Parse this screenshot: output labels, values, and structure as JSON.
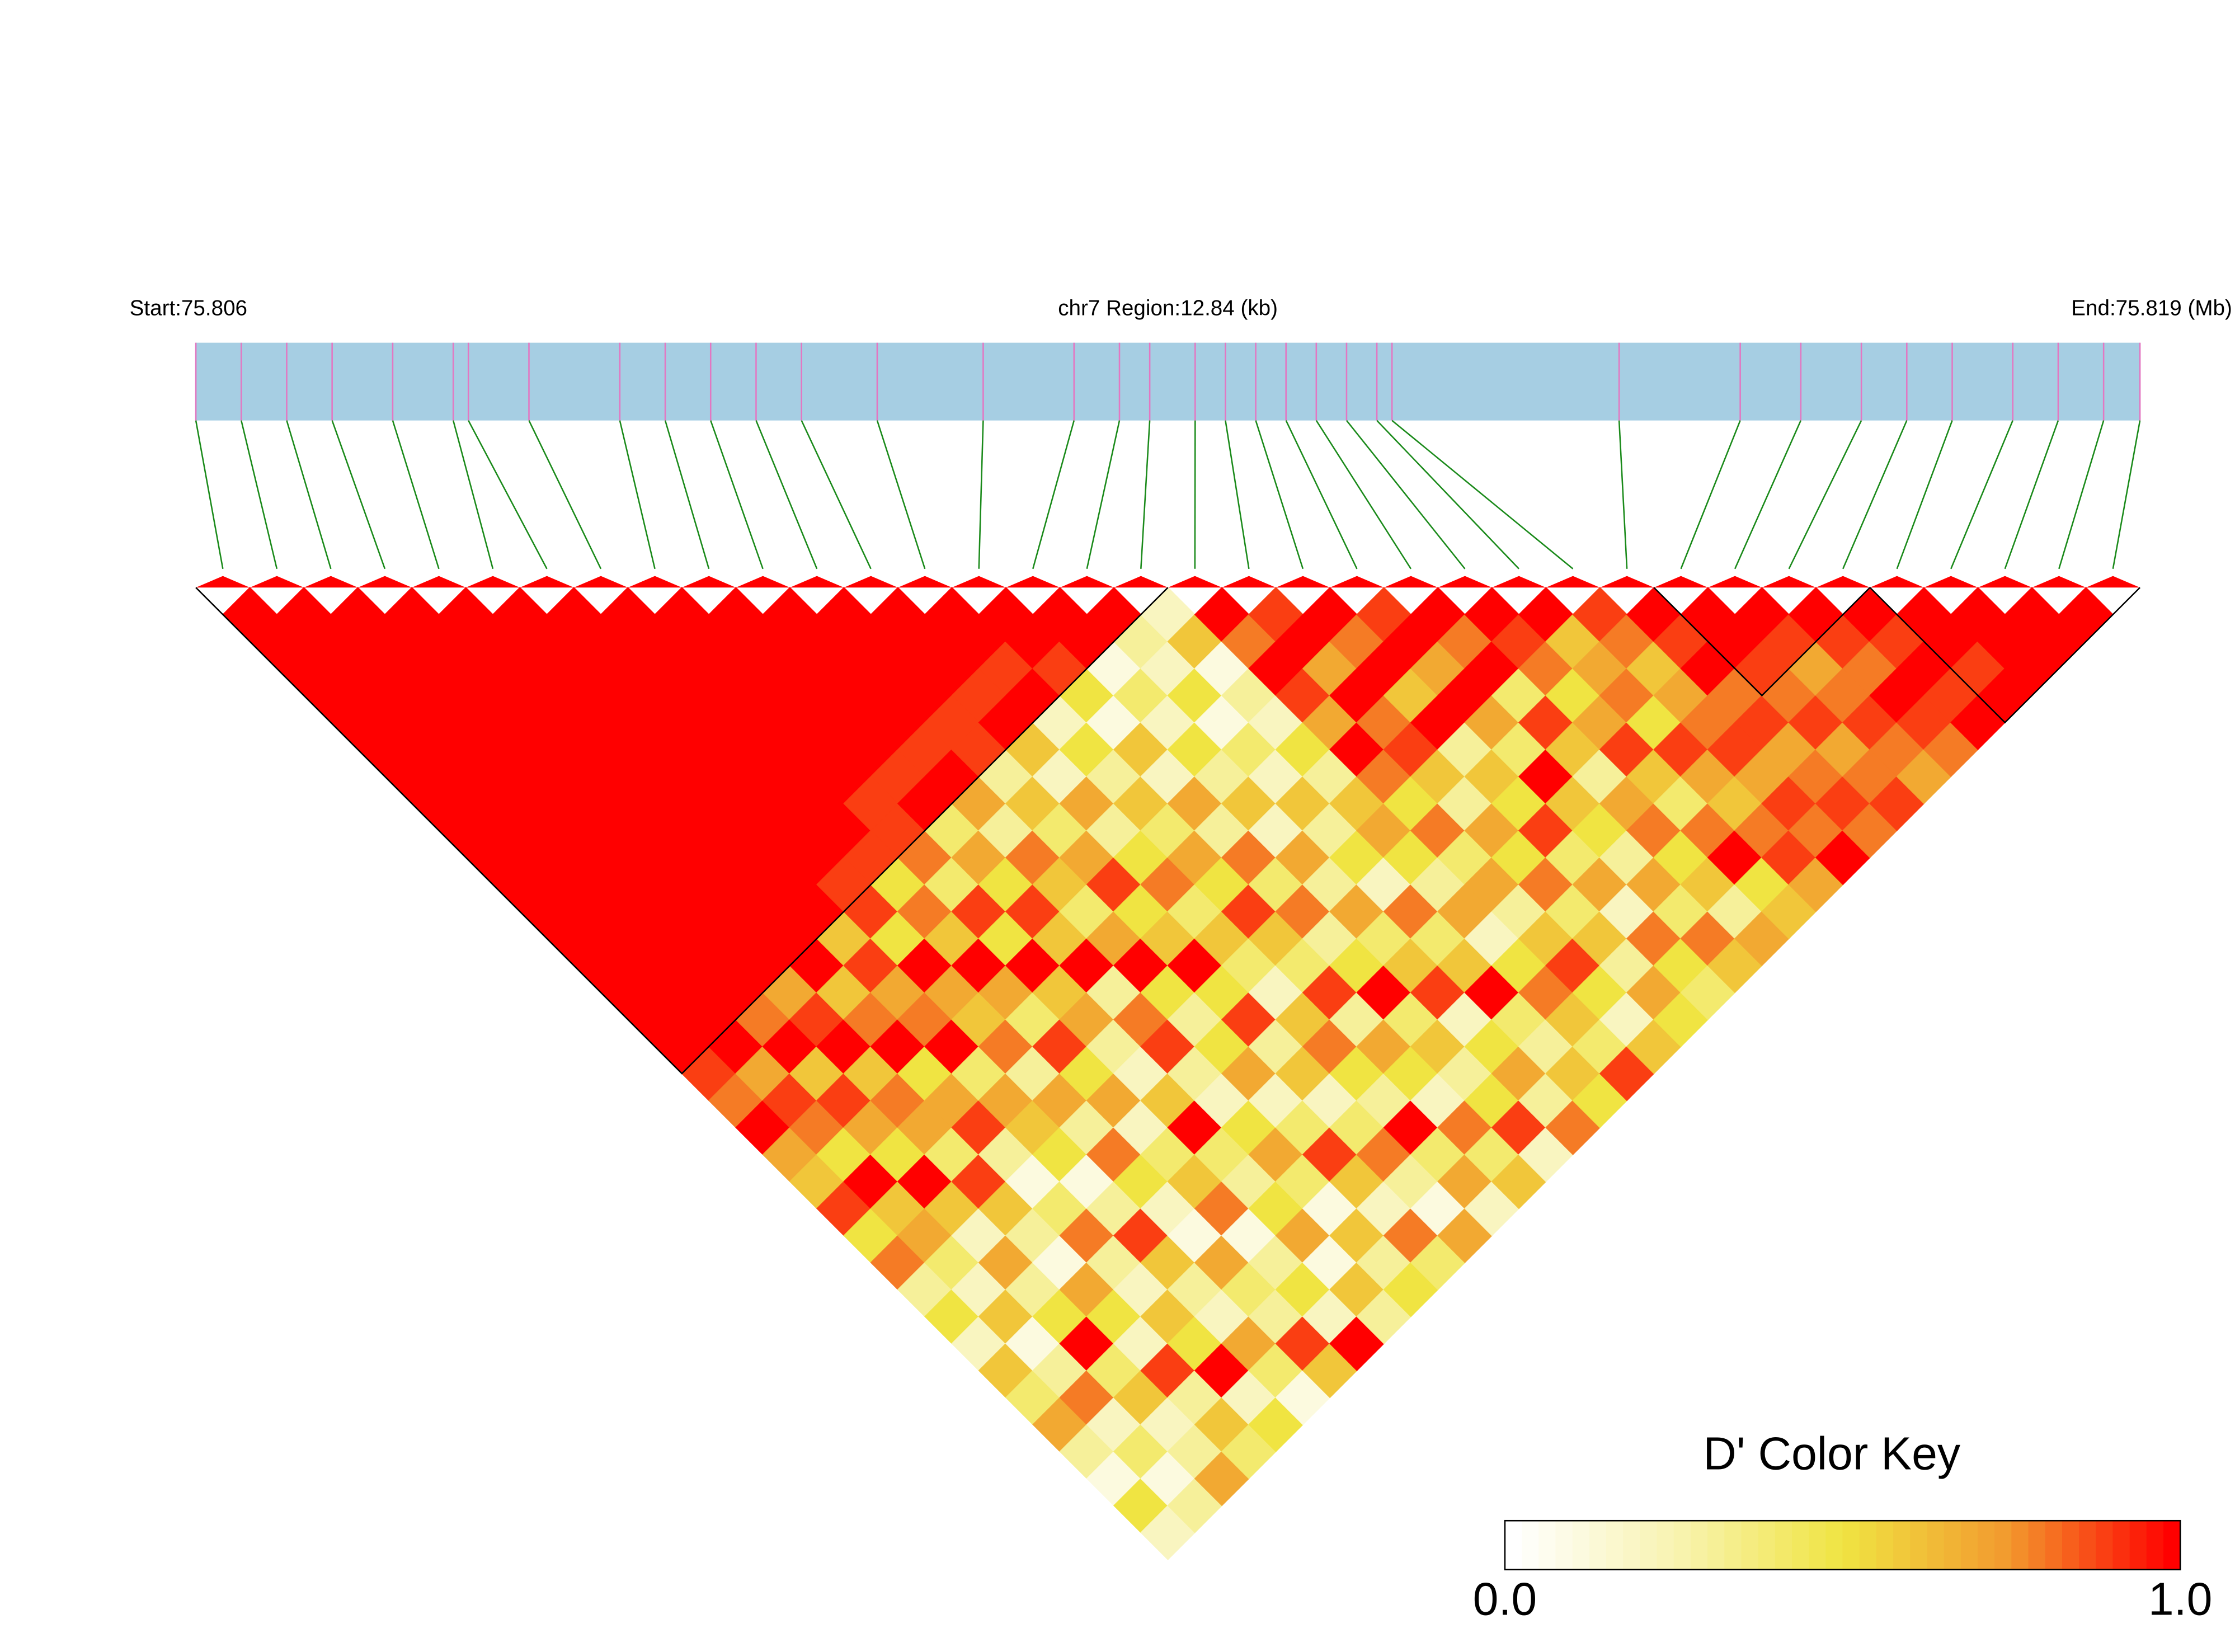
{
  "chart_data": {
    "type": "ld_heatmap",
    "start_label": "Start:75.806",
    "region_label": "chr7 Region:12.84 (kb)",
    "end_label": "End:75.819 (Mb)",
    "xlim": [
      0,
      12.84
    ],
    "snp_positions": [
      0,
      0.3,
      0.6,
      0.9,
      1.3,
      1.7,
      1.8,
      2.2,
      2.8,
      3.1,
      3.4,
      3.7,
      4.0,
      4.5,
      5.2,
      5.8,
      6.1,
      6.3,
      6.6,
      6.8,
      7.0,
      7.2,
      7.4,
      7.6,
      7.8,
      7.9,
      9.4,
      10.2,
      10.6,
      11.0,
      11.3,
      11.6,
      12.0,
      12.3,
      12.6,
      12.84
    ],
    "ld": [
      [
        1,
        1,
        1,
        1,
        1,
        1,
        1,
        1,
        1,
        1,
        1,
        1,
        1,
        1,
        1,
        1,
        1,
        0.9,
        0.8,
        1,
        0.7,
        0.6,
        0.9,
        0.5,
        0.8,
        0.3,
        0.5,
        0.2,
        0.6,
        0.4,
        0.7,
        0.3,
        0.1,
        0.5,
        0.2
      ],
      [
        1,
        1,
        1,
        1,
        1,
        1,
        1,
        1,
        1,
        1,
        1,
        1,
        1,
        1,
        1,
        1,
        1,
        0.7,
        0.9,
        0.8,
        0.5,
        1,
        0.6,
        0.7,
        0.4,
        0.2,
        0.6,
        0.1,
        0.3,
        0.8,
        0.2,
        0.4,
        0.1,
        0.3
      ],
      [
        1,
        1,
        1,
        1,
        1,
        1,
        1,
        1,
        1,
        1,
        1,
        1,
        1,
        1,
        1,
        0.8,
        1,
        0.6,
        0.9,
        0.7,
        0.5,
        1,
        0.6,
        0.2,
        0.7,
        0.3,
        0.5,
        1,
        0.4,
        0.6,
        0.2,
        0.3,
        0.7
      ],
      [
        1,
        1,
        1,
        1,
        1,
        1,
        1,
        1,
        1,
        1,
        1,
        1,
        1,
        1,
        0.7,
        0.9,
        1,
        0.6,
        0.8,
        0.7,
        0.4,
        0.9,
        0.6,
        0.3,
        0.1,
        0.7,
        0.5,
        0.2,
        0.9,
        0.3,
        0.6,
        0.4
      ],
      [
        1,
        1,
        1,
        1,
        1,
        1,
        1,
        1,
        1,
        1,
        1,
        1,
        1,
        1,
        0.6,
        0.8,
        1,
        0.5,
        0.7,
        0.9,
        0.3,
        0.1,
        0.4,
        0.8,
        0.3,
        0.2,
        0.6,
        0.5,
        1,
        0.2,
        0.5
      ],
      [
        1,
        1,
        1,
        1,
        1,
        1,
        1,
        1,
        1,
        1,
        1,
        1,
        0.6,
        0.9,
        0.7,
        0.8,
        1,
        0.4,
        0.7,
        0.6,
        0.5,
        0.1,
        0.3,
        0.9,
        0.6,
        0.3,
        0.2,
        0.7,
        0.4,
        0.1
      ],
      [
        1,
        1,
        1,
        1,
        1,
        1,
        1,
        1,
        1,
        1,
        0.9,
        0.9,
        0.5,
        1,
        0.7,
        0.6,
        0.8,
        0.3,
        0.7,
        0.3,
        0.8,
        0.5,
        0.2,
        0.1,
        0.7,
        0.4,
        0.3,
        0.9,
        0.6
      ],
      [
        1,
        1,
        1,
        1,
        1,
        1,
        1,
        1,
        1,
        0.9,
        0.5,
        0.8,
        0.6,
        1,
        0.7,
        0.4,
        0.9,
        0.5,
        0.7,
        0.2,
        0.4,
        0.6,
        0.8,
        0.1,
        0.3,
        0.5,
        0.2,
        1
      ],
      [
        1,
        1,
        1,
        1,
        1,
        1,
        1,
        0.9,
        0.9,
        0.8,
        0.4,
        0.9,
        0.5,
        1,
        0.6,
        0.7,
        0.3,
        0.2,
        0.6,
        1,
        0.4,
        0.3,
        0.5,
        0.7,
        0.1,
        0.6,
        0.3
      ],
      [
        1,
        1,
        1,
        1,
        1,
        1,
        0.9,
        1,
        0.4,
        0.7,
        0.5,
        0.9,
        0.6,
        1,
        0.3,
        0.8,
        0.9,
        0.3,
        0.2,
        0.5,
        0.7,
        0.4,
        0.1,
        0.6,
        0.3,
        0.5
      ],
      [
        1,
        1,
        1,
        1,
        1,
        0.9,
        1,
        0.7,
        0.3,
        0.8,
        0.6,
        0.4,
        0.7,
        1,
        0.5,
        0.3,
        0.5,
        0.7,
        0.2,
        0.4,
        0.9,
        0.6,
        0.2,
        0.8,
        0.4
      ],
      [
        1,
        1,
        1,
        1,
        0.9,
        0.9,
        0.3,
        0.6,
        0.4,
        0.7,
        0.9,
        0.5,
        0.6,
        1,
        0.5,
        0.9,
        0.3,
        0.6,
        0.2,
        0.4,
        0.8,
        0.3,
        0.1,
        0.7
      ],
      [
        1,
        1,
        1,
        0.9,
        1,
        0.6,
        0.2,
        0.7,
        0.3,
        0.5,
        0.8,
        0.4,
        0.6,
        0.4,
        0.2,
        0.6,
        0.8,
        0.5,
        0.3,
        1,
        0.4,
        0.7,
        0.2
      ],
      [
        1,
        1,
        0.9,
        1,
        0.2,
        0.5,
        0.3,
        0.6,
        0.4,
        0.7,
        0.5,
        0.9,
        0.6,
        0.4,
        0.9,
        0.3,
        0.7,
        0.5,
        0.2,
        0.8,
        0.4,
        0.6
      ],
      [
        1,
        1,
        0.9,
        0.5,
        0.1,
        0.6,
        0.2,
        0.7,
        0.3,
        0.8,
        0.4,
        0.8,
        0.3,
        0.5,
        1,
        0.4,
        0.6,
        0.3,
        0.5,
        0.9,
        0.2
      ],
      [
        1,
        1,
        0.1,
        0.4,
        0.2,
        0.5,
        0.3,
        0.6,
        0.2,
        0.7,
        0.3,
        0.7,
        0.4,
        0.6,
        0.9,
        0.2,
        0.5,
        0.7,
        0.3,
        0.8
      ],
      [
        1,
        0.3,
        0.2,
        0.5,
        0.1,
        0.4,
        0.2,
        0.6,
        0.3,
        0.5,
        0.2,
        0.8,
        0.4,
        0.6,
        1,
        0.4,
        0.3,
        0.6,
        0.5
      ],
      [
        0.2,
        0.6,
        0.1,
        0.3,
        0.2,
        0.5,
        0.3,
        0.6,
        0.7,
        0.5,
        0.3,
        0.7,
        0.2,
        0.5,
        0.8,
        0.6,
        0.4,
        0.9
      ],
      [
        1,
        0.8,
        1,
        0.9,
        0.7,
        1,
        0.8,
        0.5,
        0.8,
        0.4,
        0.7,
        0.3,
        0.6,
        0.9,
        0.5,
        0.2,
        0.6
      ],
      [
        0.9,
        1,
        0.7,
        1,
        0.8,
        0.9,
        0.6,
        0.3,
        0.7,
        0.5,
        0.8,
        0.4,
        0.6,
        0.3,
        0.7,
        0.5
      ],
      [
        1,
        0.8,
        1,
        0.6,
        1,
        0.3,
        0.6,
        0.5,
        0.9,
        0.4,
        0.7,
        0.2,
        0.8,
        0.5,
        0.4
      ],
      [
        0.9,
        1,
        0.7,
        1,
        0.7,
        0.4,
        1,
        0.6,
        0.5,
        0.3,
        0.7,
        0.4,
        0.8,
        0.6
      ],
      [
        1,
        0.8,
        1,
        0.4,
        0.9,
        0.6,
        0.3,
        0.7,
        0.8,
        0.5,
        0.6,
        0.3,
        0.7
      ],
      [
        1,
        0.9,
        0.8,
        0.5,
        0.7,
        0.9,
        0.6,
        0.4,
        0.8,
        1,
        0.5,
        0.6
      ],
      [
        1,
        0.6,
        0.7,
        0.8,
        0.5,
        0.9,
        0.7,
        0.6,
        0.8,
        0.9,
        0.7
      ],
      [
        0.9,
        0.8,
        0.6,
        0.7,
        0.8,
        0.9,
        0.7,
        0.9,
        0.8,
        1
      ],
      [
        1,
        0.9,
        1,
        0.8,
        0.9,
        0.7,
        0.8,
        0.9,
        0.8
      ],
      [
        1,
        1,
        0.9,
        0.8,
        0.9,
        0.7,
        0.8,
        0.9
      ],
      [
        1,
        0.9,
        0.7,
        0.8,
        0.9,
        0.8,
        0.7
      ],
      [
        1,
        0.9,
        0.8,
        1,
        0.9,
        0.8
      ],
      [
        1,
        0.9,
        1,
        0.9,
        1
      ],
      [
        1,
        1,
        0.9,
        1
      ],
      [
        1,
        1,
        1
      ],
      [
        1,
        1
      ],
      [
        1
      ]
    ],
    "blocks": [
      [
        0,
        17
      ],
      [
        27,
        30
      ],
      [
        31,
        35
      ]
    ],
    "colors": {
      "track": "#a6cee3",
      "snp": "#e377c2",
      "connector": "#1a8a1a",
      "scale": [
        "#ffffff",
        "#f8f3b0",
        "#f0e442",
        "#f29a2e",
        "#ff0000"
      ]
    },
    "key": {
      "title": "D' Color Key",
      "ticks": [
        {
          "value": 0,
          "label": "0.0"
        },
        {
          "value": 1,
          "label": "1.0"
        }
      ]
    }
  }
}
